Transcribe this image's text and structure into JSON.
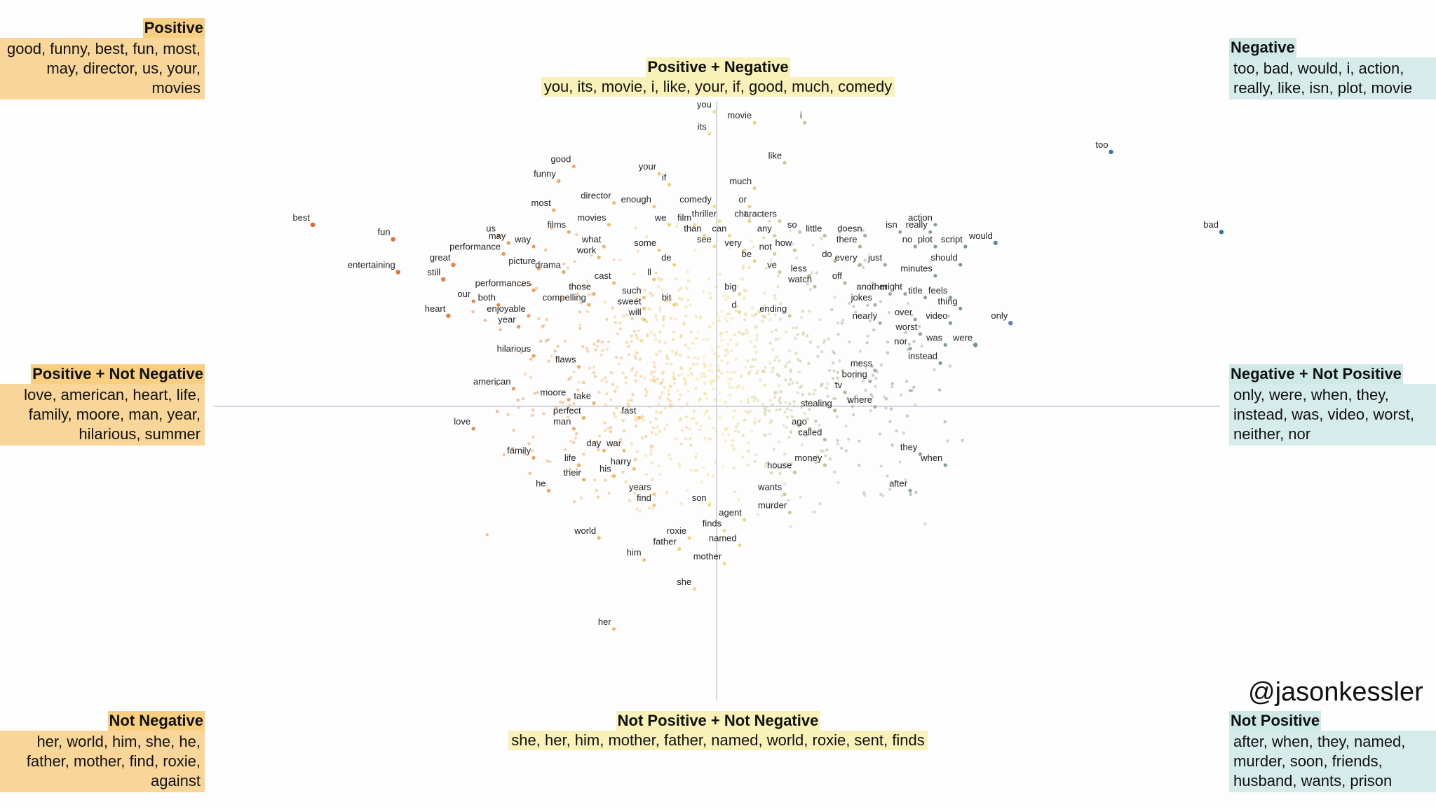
{
  "panels": {
    "positive": {
      "title": "Positive",
      "body": "good, funny, best, fun, most, may, director, us, your, movies"
    },
    "pos_neg": {
      "title": "Positive + Negative",
      "body": "you, its, movie, i, like, your, if, good, much, comedy"
    },
    "negative": {
      "title": "Negative",
      "body": "too, bad, would, i, action, really, like, isn, plot, movie"
    },
    "pos_not_neg": {
      "title": "Positive + Not Negative",
      "body": "love, american, heart, life, family, moore, man, year, hilarious, summer"
    },
    "neg_not_pos": {
      "title": "Negative + Not Positive",
      "body": "only, were, when, they, instead, was, video, worst, neither, nor"
    },
    "not_neg": {
      "title": "Not Negative",
      "body": "her, world, him, she, he, father, mother, find, roxie, against"
    },
    "not_pos_not_neg": {
      "title": "Not Positive + Not Negative",
      "body": "she, her, him, mother, father, named, world, roxie, sent, finds"
    },
    "not_pos": {
      "title": "Not Positive",
      "body": "after, when, they, named, murder, soon, friends, husband, wants, prison"
    }
  },
  "handle": "@jasonkessler",
  "colors": {
    "positive": "#e8602c",
    "neutral": "#f2e088",
    "negative": "#3a6fb0",
    "axis": "#c8c8d8"
  },
  "chart_data": {
    "type": "scatter",
    "title": "",
    "xlabel": "",
    "ylabel": "",
    "xlim": [
      -1,
      1
    ],
    "ylim": [
      -1,
      1
    ],
    "grid": false,
    "quadrant_axes": true,
    "points": [
      {
        "word": "you",
        "x": -0.01,
        "y": 0.82
      },
      {
        "word": "its",
        "x": -0.02,
        "y": 0.76
      },
      {
        "word": "movie",
        "x": 0.07,
        "y": 0.79
      },
      {
        "word": "i",
        "x": 0.17,
        "y": 0.79
      },
      {
        "word": "like",
        "x": 0.13,
        "y": 0.68
      },
      {
        "word": "good",
        "x": -0.29,
        "y": 0.67
      },
      {
        "word": "funny",
        "x": -0.32,
        "y": 0.63
      },
      {
        "word": "your",
        "x": -0.12,
        "y": 0.65
      },
      {
        "word": "if",
        "x": -0.1,
        "y": 0.62
      },
      {
        "word": "much",
        "x": 0.07,
        "y": 0.61
      },
      {
        "word": "director",
        "x": -0.21,
        "y": 0.57
      },
      {
        "word": "enough",
        "x": -0.13,
        "y": 0.56
      },
      {
        "word": "comedy",
        "x": -0.01,
        "y": 0.56
      },
      {
        "word": "or",
        "x": 0.06,
        "y": 0.56
      },
      {
        "word": "most",
        "x": -0.33,
        "y": 0.55
      },
      {
        "word": "characters",
        "x": 0.12,
        "y": 0.52
      },
      {
        "word": "t",
        "x": 0.06,
        "y": 0.52
      },
      {
        "word": "we",
        "x": -0.1,
        "y": 0.51
      },
      {
        "word": "film",
        "x": -0.05,
        "y": 0.51
      },
      {
        "word": "thriller",
        "x": 0.0,
        "y": 0.52
      },
      {
        "word": "movies",
        "x": -0.22,
        "y": 0.51
      },
      {
        "word": "best",
        "x": -0.81,
        "y": 0.51
      },
      {
        "word": "films",
        "x": -0.3,
        "y": 0.49
      },
      {
        "word": "us",
        "x": -0.44,
        "y": 0.48
      },
      {
        "word": "so",
        "x": 0.16,
        "y": 0.49
      },
      {
        "word": "than",
        "x": -0.03,
        "y": 0.48
      },
      {
        "word": "can",
        "x": 0.02,
        "y": 0.48
      },
      {
        "word": "any",
        "x": 0.11,
        "y": 0.48
      },
      {
        "word": "little",
        "x": 0.21,
        "y": 0.48
      },
      {
        "word": "doesn",
        "x": 0.29,
        "y": 0.48
      },
      {
        "word": "isn",
        "x": 0.36,
        "y": 0.49
      },
      {
        "word": "action",
        "x": 0.43,
        "y": 0.51
      },
      {
        "word": "really",
        "x": 0.42,
        "y": 0.49
      },
      {
        "word": "fun",
        "x": -0.65,
        "y": 0.47
      },
      {
        "word": "may",
        "x": -0.42,
        "y": 0.46
      },
      {
        "word": "way",
        "x": -0.37,
        "y": 0.45
      },
      {
        "word": "what",
        "x": -0.23,
        "y": 0.45
      },
      {
        "word": "some",
        "x": -0.12,
        "y": 0.44
      },
      {
        "word": "see",
        "x": -0.01,
        "y": 0.45
      },
      {
        "word": "very",
        "x": 0.05,
        "y": 0.44
      },
      {
        "word": "there",
        "x": 0.28,
        "y": 0.45
      },
      {
        "word": "no",
        "x": 0.39,
        "y": 0.45
      },
      {
        "word": "plot",
        "x": 0.43,
        "y": 0.45
      },
      {
        "word": "script",
        "x": 0.49,
        "y": 0.45
      },
      {
        "word": "would",
        "x": 0.55,
        "y": 0.46
      },
      {
        "word": "performance",
        "x": -0.43,
        "y": 0.43
      },
      {
        "word": "work",
        "x": -0.24,
        "y": 0.42
      },
      {
        "word": "not",
        "x": 0.11,
        "y": 0.43
      },
      {
        "word": "how",
        "x": 0.15,
        "y": 0.44
      },
      {
        "word": "great",
        "x": -0.53,
        "y": 0.4
      },
      {
        "word": "picture",
        "x": -0.36,
        "y": 0.39
      },
      {
        "word": "de",
        "x": -0.09,
        "y": 0.4
      },
      {
        "word": "be",
        "x": 0.07,
        "y": 0.41
      },
      {
        "word": "do",
        "x": 0.23,
        "y": 0.41
      },
      {
        "word": "every",
        "x": 0.28,
        "y": 0.4
      },
      {
        "word": "just",
        "x": 0.33,
        "y": 0.4
      },
      {
        "word": "should",
        "x": 0.48,
        "y": 0.4
      },
      {
        "word": "entertaining",
        "x": -0.64,
        "y": 0.38
      },
      {
        "word": "drama",
        "x": -0.31,
        "y": 0.38
      },
      {
        "word": "ve",
        "x": 0.12,
        "y": 0.38
      },
      {
        "word": "less",
        "x": 0.18,
        "y": 0.37
      },
      {
        "word": "minutes",
        "x": 0.43,
        "y": 0.37
      },
      {
        "word": "still",
        "x": -0.55,
        "y": 0.36
      },
      {
        "word": "cast",
        "x": -0.21,
        "y": 0.35
      },
      {
        "word": "ll",
        "x": -0.13,
        "y": 0.36
      },
      {
        "word": "off",
        "x": 0.25,
        "y": 0.35
      },
      {
        "word": "watch",
        "x": 0.19,
        "y": 0.34
      },
      {
        "word": "performances",
        "x": -0.37,
        "y": 0.33
      },
      {
        "word": "another",
        "x": 0.34,
        "y": 0.32
      },
      {
        "word": "might",
        "x": 0.37,
        "y": 0.32
      },
      {
        "word": "title",
        "x": 0.41,
        "y": 0.31
      },
      {
        "word": "feels",
        "x": 0.46,
        "y": 0.31
      },
      {
        "word": "those",
        "x": -0.25,
        "y": 0.32
      },
      {
        "word": "big",
        "x": 0.04,
        "y": 0.32
      },
      {
        "word": "such",
        "x": -0.15,
        "y": 0.31
      },
      {
        "word": "our",
        "x": -0.49,
        "y": 0.3
      },
      {
        "word": "both",
        "x": -0.44,
        "y": 0.29
      },
      {
        "word": "compelling",
        "x": -0.26,
        "y": 0.29
      },
      {
        "word": "bit",
        "x": -0.09,
        "y": 0.29
      },
      {
        "word": "sweet",
        "x": -0.15,
        "y": 0.28
      },
      {
        "word": "jokes",
        "x": 0.31,
        "y": 0.29
      },
      {
        "word": "thing",
        "x": 0.48,
        "y": 0.28
      },
      {
        "word": "d",
        "x": 0.04,
        "y": 0.27
      },
      {
        "word": "ending",
        "x": 0.14,
        "y": 0.26
      },
      {
        "word": "heart",
        "x": -0.54,
        "y": 0.26
      },
      {
        "word": "enjoyable",
        "x": -0.38,
        "y": 0.26
      },
      {
        "word": "will",
        "x": -0.15,
        "y": 0.25
      },
      {
        "word": "nearly",
        "x": 0.32,
        "y": 0.24
      },
      {
        "word": "over",
        "x": 0.39,
        "y": 0.25
      },
      {
        "word": "video",
        "x": 0.46,
        "y": 0.24
      },
      {
        "word": "only",
        "x": 0.58,
        "y": 0.24
      },
      {
        "word": "year",
        "x": -0.4,
        "y": 0.23
      },
      {
        "word": "worst",
        "x": 0.4,
        "y": 0.21
      },
      {
        "word": "were",
        "x": 0.51,
        "y": 0.18
      },
      {
        "word": "was",
        "x": 0.45,
        "y": 0.18
      },
      {
        "word": "nor",
        "x": 0.38,
        "y": 0.17
      },
      {
        "word": "hilarious",
        "x": -0.37,
        "y": 0.15
      },
      {
        "word": "instead",
        "x": 0.44,
        "y": 0.13
      },
      {
        "word": "flaws",
        "x": -0.28,
        "y": 0.12
      },
      {
        "word": "mess",
        "x": 0.31,
        "y": 0.11
      },
      {
        "word": "boring",
        "x": 0.3,
        "y": 0.08
      },
      {
        "word": "tv",
        "x": 0.25,
        "y": 0.05
      },
      {
        "word": "american",
        "x": -0.41,
        "y": 0.06
      },
      {
        "word": "moore",
        "x": -0.3,
        "y": 0.03
      },
      {
        "word": "take",
        "x": -0.25,
        "y": 0.02
      },
      {
        "word": "where",
        "x": 0.31,
        "y": 0.01
      },
      {
        "word": "stealing",
        "x": 0.23,
        "y": 0.0
      },
      {
        "word": "perfect",
        "x": -0.27,
        "y": -0.02
      },
      {
        "word": "fast",
        "x": -0.16,
        "y": -0.02
      },
      {
        "word": "love",
        "x": -0.49,
        "y": -0.05
      },
      {
        "word": "ago",
        "x": 0.18,
        "y": -0.05
      },
      {
        "word": "man",
        "x": -0.29,
        "y": -0.05
      },
      {
        "word": "called",
        "x": 0.21,
        "y": -0.08
      },
      {
        "word": "day",
        "x": -0.23,
        "y": -0.11
      },
      {
        "word": "war",
        "x": -0.19,
        "y": -0.11
      },
      {
        "word": "they",
        "x": 0.4,
        "y": -0.12
      },
      {
        "word": "family",
        "x": -0.37,
        "y": -0.13
      },
      {
        "word": "when",
        "x": 0.45,
        "y": -0.15
      },
      {
        "word": "money",
        "x": 0.21,
        "y": -0.15
      },
      {
        "word": "life",
        "x": -0.28,
        "y": -0.15
      },
      {
        "word": "harry",
        "x": -0.17,
        "y": -0.16
      },
      {
        "word": "house",
        "x": 0.15,
        "y": -0.17
      },
      {
        "word": "their",
        "x": -0.27,
        "y": -0.19
      },
      {
        "word": "his",
        "x": -0.21,
        "y": -0.18
      },
      {
        "word": "after",
        "x": 0.38,
        "y": -0.22
      },
      {
        "word": "he",
        "x": -0.34,
        "y": -0.22
      },
      {
        "word": "years",
        "x": -0.13,
        "y": -0.23
      },
      {
        "word": "wants",
        "x": 0.13,
        "y": -0.23
      },
      {
        "word": "son",
        "x": -0.02,
        "y": -0.26
      },
      {
        "word": "find",
        "x": -0.13,
        "y": -0.26
      },
      {
        "word": "murder",
        "x": 0.14,
        "y": -0.28
      },
      {
        "word": "agent",
        "x": 0.05,
        "y": -0.3
      },
      {
        "word": "finds",
        "x": 0.01,
        "y": -0.33
      },
      {
        "word": "roxie",
        "x": -0.06,
        "y": -0.35
      },
      {
        "word": "world",
        "x": -0.24,
        "y": -0.35
      },
      {
        "word": "named",
        "x": 0.04,
        "y": -0.37
      },
      {
        "word": "father",
        "x": -0.08,
        "y": -0.38
      },
      {
        "word": "him",
        "x": -0.15,
        "y": -0.41
      },
      {
        "word": "mother",
        "x": 0.01,
        "y": -0.42
      },
      {
        "word": "she",
        "x": -0.05,
        "y": -0.49
      },
      {
        "word": "her",
        "x": -0.21,
        "y": -0.6
      },
      {
        "word": "too",
        "x": 0.78,
        "y": 0.71
      },
      {
        "word": "bad",
        "x": 1.0,
        "y": 0.49
      }
    ]
  }
}
